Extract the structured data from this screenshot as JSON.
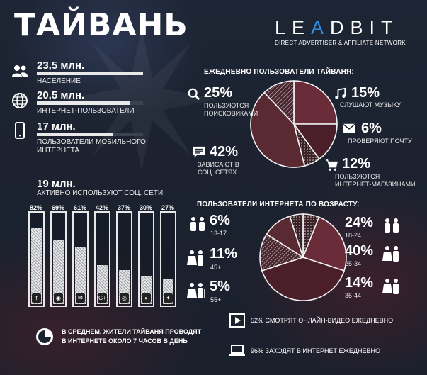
{
  "header": {
    "title": "ТАЙВАНЬ",
    "logo": {
      "part1": "LE",
      "part2": "A",
      "part3": "DBIT",
      "subtitle": "DIRECT ADVERTISER & AFFILIATE NETWORK"
    }
  },
  "stats": [
    {
      "value": "23,5 млн.",
      "label": "НАСЕЛЕНИЕ",
      "icon": "people-icon",
      "fill": 1.0
    },
    {
      "value": "20,5 млн.",
      "label": "ИНТЕРНЕТ-ПОЛЬЗОВАТЕЛИ",
      "icon": "globe-icon",
      "fill": 0.87
    },
    {
      "value": "17 млн.",
      "label": "ПОЛЬЗОВАТЕЛИ МОБИЛЬНОГО ИНТЕРНЕТА",
      "icon": "phone-icon",
      "fill": 0.72
    }
  ],
  "social": {
    "value": "19 млн.",
    "label": "АКТИВНО ИСПОЛЬЗУЮТ СОЦ. СЕТИ:"
  },
  "daily": {
    "title": "ЕЖЕДНЕВНО ПОЛЬЗОВАТЕЛИ ТАЙВАНЯ:",
    "items": [
      {
        "pct": "25%",
        "label1": "ПОЛЬЗУЮТСЯ",
        "label2": "ПОИСКОВИКАМИ",
        "label3": "",
        "icon": "search-icon"
      },
      {
        "pct": "15%",
        "label1": "СЛУШАЮТ МУЗЫКУ",
        "label2": "",
        "label3": "",
        "icon": "music-icon"
      },
      {
        "pct": "6%",
        "label1": "ПРОВЕРЯЮТ ПОЧТУ",
        "label2": "",
        "label3": "",
        "icon": "mail-icon"
      },
      {
        "pct": "42%",
        "label1": "ЗАВИСАЮТ В",
        "label2": "СОЦ. СЕТЯХ",
        "label3": "",
        "icon": "chat-icon"
      },
      {
        "pct": "12%",
        "label1": "ПОЛЬЗУЮТСЯ",
        "label2": "ИНТЕРНЕТ-МАГАЗИНАМИ",
        "label3": "",
        "icon": "cart-icon"
      }
    ]
  },
  "age": {
    "title": "ПОЛЬЗОВАТЕЛИ ИНТЕРНЕТА ПО ВОЗРАСТУ:",
    "left": [
      {
        "pct": "6%",
        "range": "13-17"
      },
      {
        "pct": "11%",
        "range": "45+"
      },
      {
        "pct": "5%",
        "range": "55+"
      }
    ],
    "right": [
      {
        "pct": "24%",
        "range": "18-24"
      },
      {
        "pct": "40%",
        "range": "25-34"
      },
      {
        "pct": "14%",
        "range": "35-44"
      }
    ]
  },
  "footer": {
    "hours_line1": "В СРЕДНЕМ, ЖИТЕЛИ ТАЙВАНЯ ПРОВОДЯТ",
    "hours_line2": "В ИНТЕРНЕТЕ ОКОЛО 7 ЧАСОВ В ДЕНЬ",
    "video": "52% СМОТРЯТ ОНЛАЙН-ВИДЕО ЕЖЕДНЕВНО",
    "daily_net": "96% ЗАХОДЯТ В ИНТЕРНЕТ ЕЖЕДНЕВНО"
  },
  "chart_data": [
    {
      "type": "bar",
      "categories": [
        "facebook",
        "line",
        "messenger",
        "google+",
        "instagram",
        "weibo",
        "twitter"
      ],
      "values": [
        82,
        69,
        61,
        42,
        37,
        30,
        27
      ],
      "labels": [
        "82%",
        "69%",
        "61%",
        "42%",
        "37%",
        "30%",
        "27%"
      ],
      "ylim": [
        0,
        100
      ]
    },
    {
      "type": "pie",
      "categories": [
        "поисковики",
        "музыка",
        "почта",
        "соц. сети",
        "интернет-магазины"
      ],
      "values": [
        25,
        15,
        6,
        42,
        12
      ]
    },
    {
      "type": "pie",
      "categories": [
        "13-17",
        "18-24",
        "25-34",
        "35-44",
        "45+",
        "55+"
      ],
      "values": [
        6,
        24,
        40,
        14,
        11,
        5
      ]
    }
  ],
  "colors": {
    "accent": "#2e8fe0",
    "pie_fill": "#5a2a33",
    "bar_fill": "#e6e6e6"
  }
}
